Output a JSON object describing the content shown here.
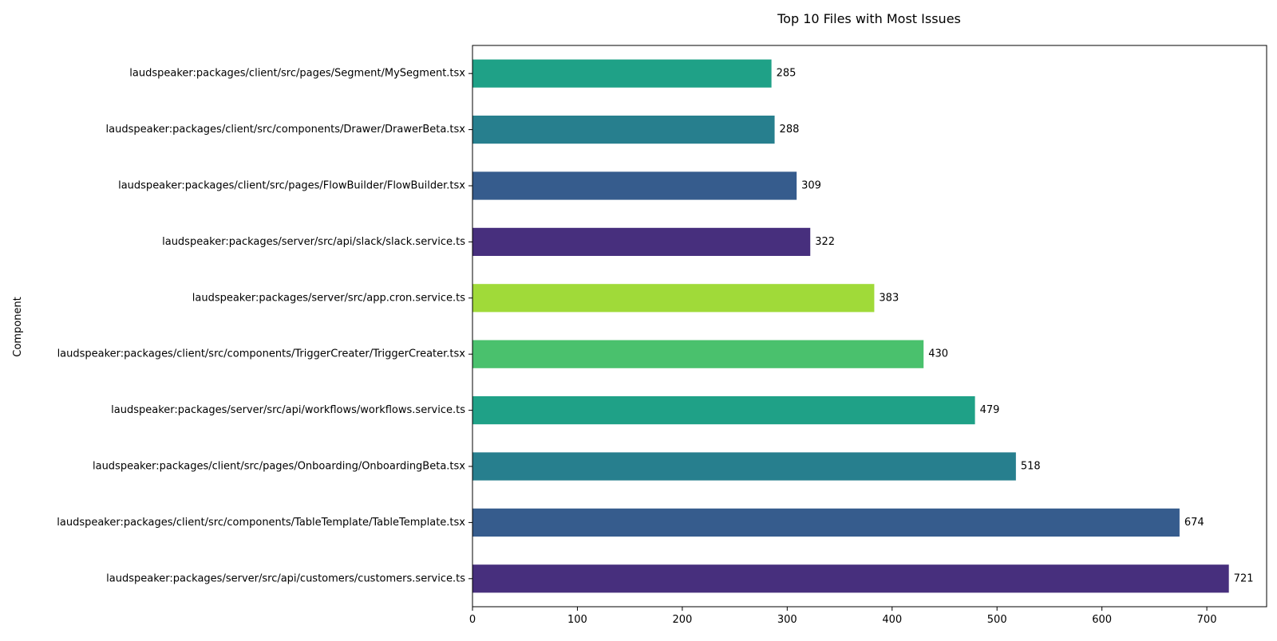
{
  "chart_data": {
    "type": "bar",
    "orientation": "horizontal",
    "title": "Top 10 Files with Most Issues",
    "xlabel": "",
    "ylabel": "Component",
    "xlim": [
      0,
      757
    ],
    "xticks": [
      0,
      100,
      200,
      300,
      400,
      500,
      600,
      700
    ],
    "grid": false,
    "legend": "none",
    "categories": [
      "laudspeaker:packages/server/src/api/customers/customers.service.ts",
      "laudspeaker:packages/client/src/components/TableTemplate/TableTemplate.tsx",
      "laudspeaker:packages/client/src/pages/Onboarding/OnboardingBeta.tsx",
      "laudspeaker:packages/server/src/api/workflows/workflows.service.ts",
      "laudspeaker:packages/client/src/components/TriggerCreater/TriggerCreater.tsx",
      "laudspeaker:packages/server/src/app.cron.service.ts",
      "laudspeaker:packages/server/src/api/slack/slack.service.ts",
      "laudspeaker:packages/client/src/pages/FlowBuilder/FlowBuilder.tsx",
      "laudspeaker:packages/client/src/components/Drawer/DrawerBeta.tsx",
      "laudspeaker:packages/client/src/pages/Segment/MySegment.tsx"
    ],
    "values": [
      721,
      674,
      518,
      479,
      430,
      383,
      322,
      309,
      288,
      285
    ],
    "colors": [
      "#472f7d",
      "#365c8d",
      "#277f8e",
      "#1fa187",
      "#4ac16d",
      "#a0da39",
      "#472f7d",
      "#365c8d",
      "#277f8e",
      "#1fa187"
    ]
  }
}
